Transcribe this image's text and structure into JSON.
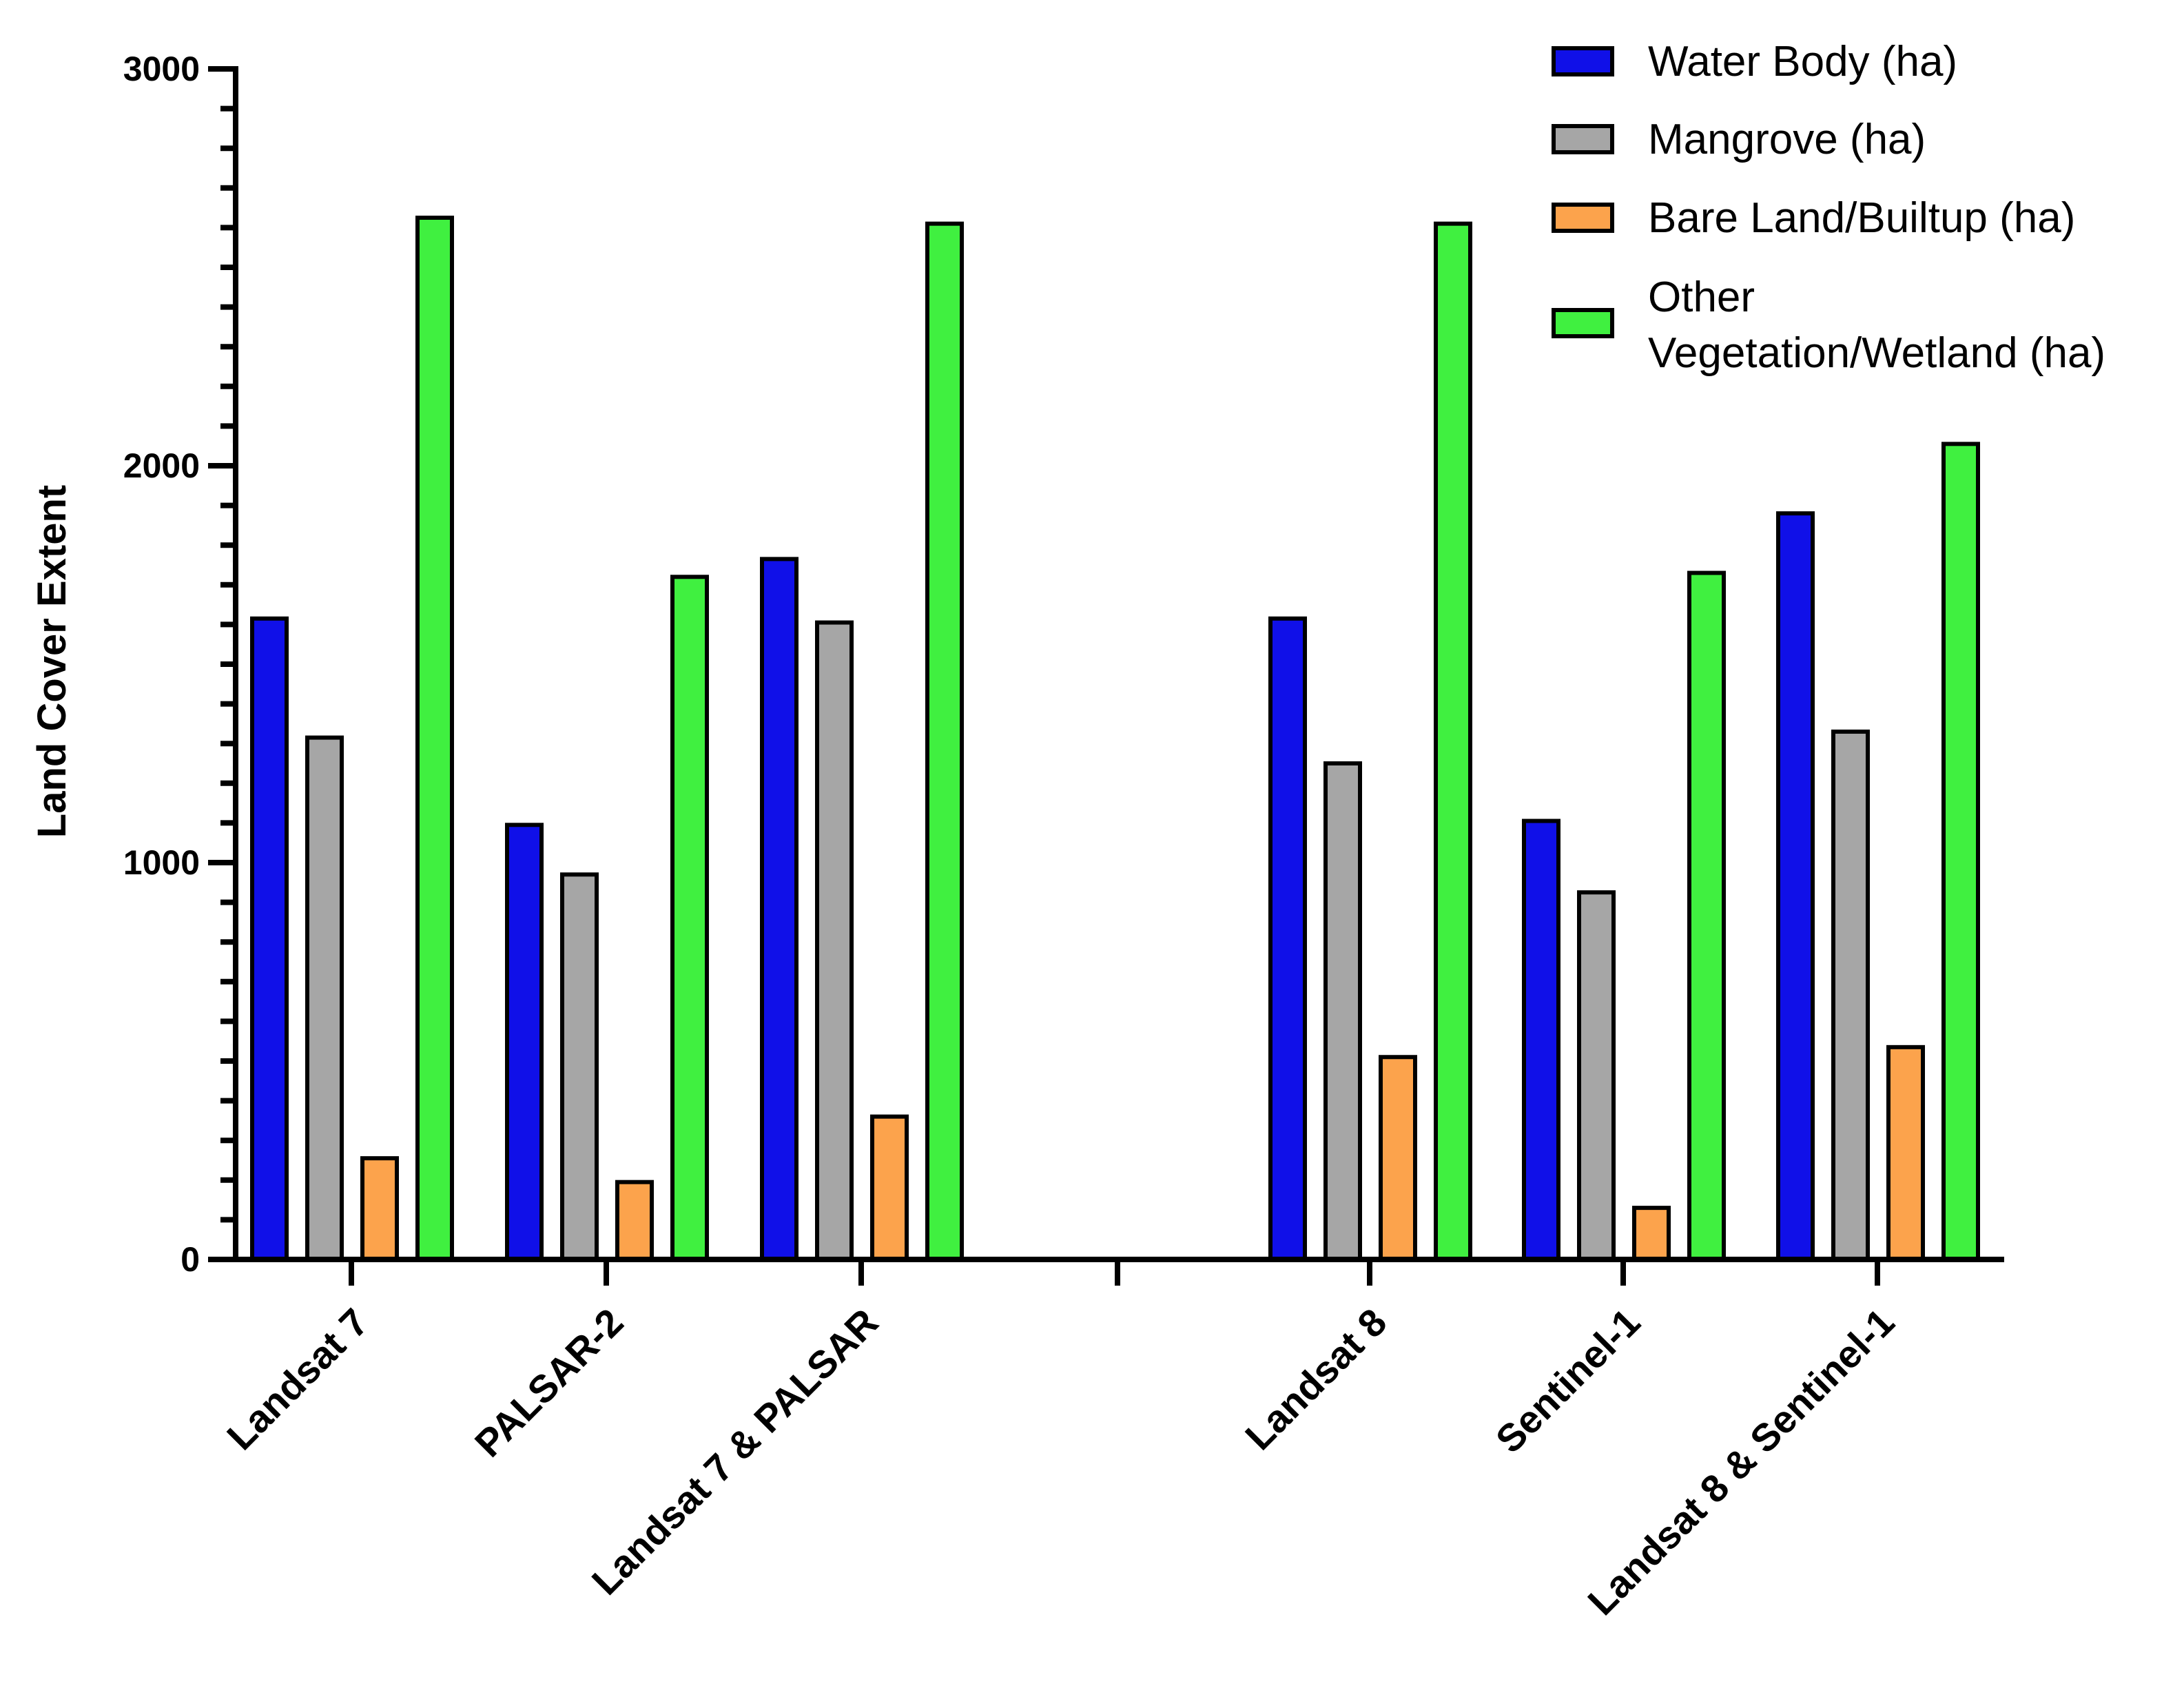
{
  "chart_data": {
    "type": "bar",
    "title": "",
    "xlabel": "",
    "ylabel": "Land Cover Extent",
    "ylim": [
      0,
      3000
    ],
    "yticks": [
      0,
      1000,
      2000,
      3000
    ],
    "grid": false,
    "legend_position": "top-right",
    "categories": [
      "Landsat 7",
      "PALSAR-2",
      "Landsat 7 & PALSAR",
      "Landsat 8",
      "Sentinel-1",
      "Landsat 8 & Sentinel-1"
    ],
    "series": [
      {
        "name": "Water Body (ha)",
        "color": "#1010e8",
        "values": [
          1615,
          1095,
          1765,
          1615,
          1105,
          1880
        ]
      },
      {
        "name": "Mangrove (ha)",
        "color": "#a6a6a6",
        "values": [
          1315,
          970,
          1605,
          1250,
          925,
          1330
        ]
      },
      {
        "name": "Bare Land/Builtup (ha)",
        "color": "#fca34c",
        "values": [
          255,
          195,
          360,
          510,
          130,
          535
        ]
      },
      {
        "name": "Other Vegetation/Wetland (ha)",
        "color": "#40f040",
        "values": [
          2625,
          1720,
          2610,
          2610,
          1730,
          2055
        ]
      }
    ]
  }
}
